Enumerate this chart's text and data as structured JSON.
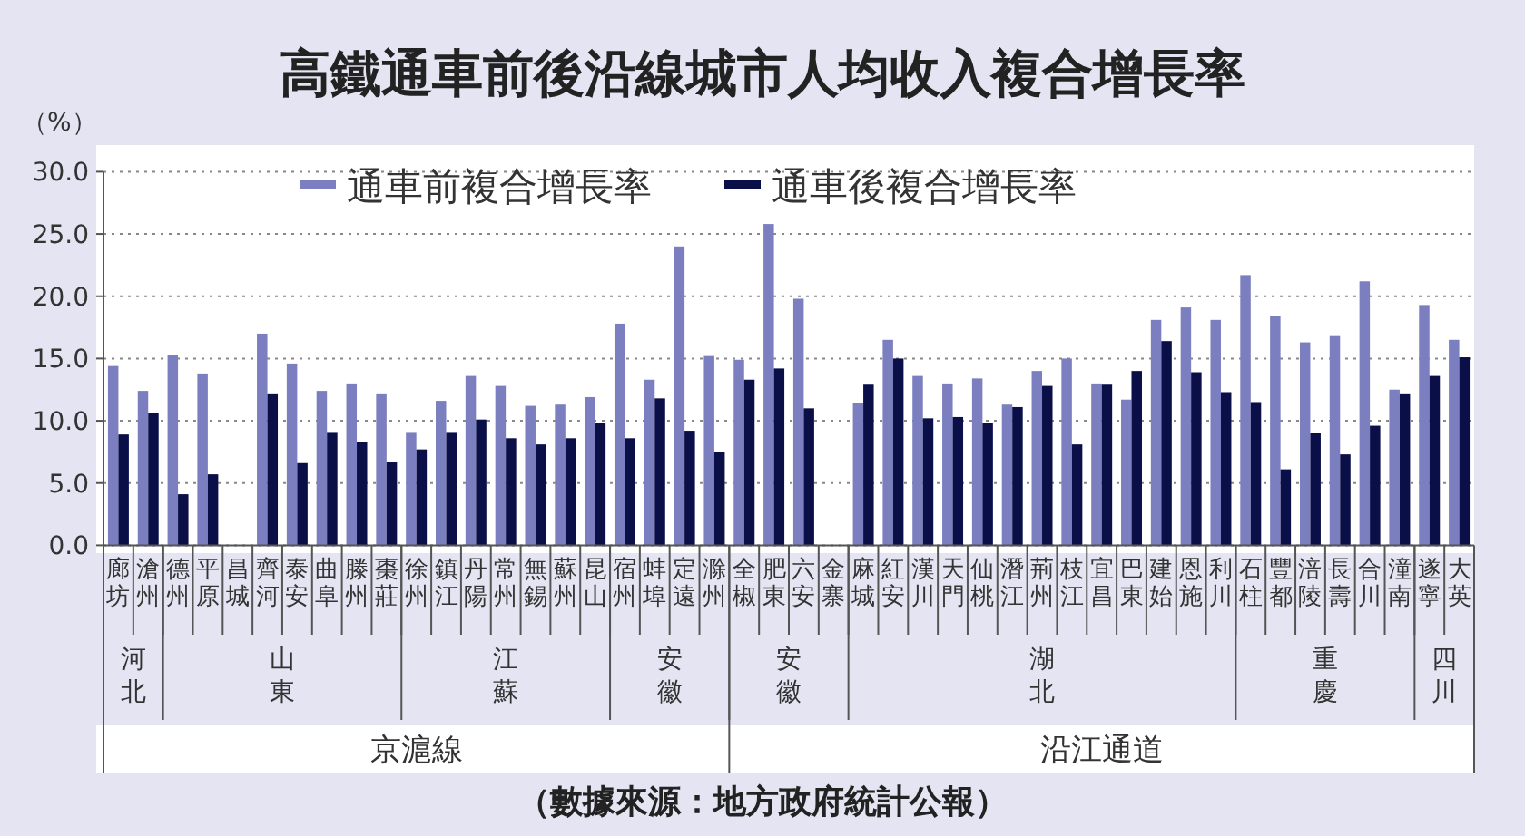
{
  "chart_data": {
    "type": "bar",
    "title": "高鐵通車前後沿線城市人均收入複合增長率",
    "ylabel": "（%）",
    "categories": [
      "廊坊",
      "滄州",
      "德州",
      "平原",
      "昌城",
      "齊河",
      "泰安",
      "曲阜",
      "滕州",
      "棗莊",
      "徐州",
      "鎮江",
      "丹陽",
      "常州",
      "無錫",
      "蘇州",
      "昆山",
      "宿州",
      "蚌埠",
      "定遠",
      "滁州",
      "全椒",
      "肥東",
      "六安",
      "金寨",
      "麻城",
      "紅安",
      "漢川",
      "天門",
      "仙桃",
      "潛江",
      "荊州",
      "枝江",
      "宜昌",
      "巴東",
      "建始",
      "恩施",
      "利川",
      "石柱",
      "豐都",
      "涪陵",
      "長壽",
      "合川",
      "潼南",
      "遂寧",
      "大英"
    ],
    "series": [
      {
        "name": "通車前複合增長率",
        "color": "#7b7fbf",
        "values": [
          14.4,
          12.4,
          15.3,
          13.8,
          null,
          17.0,
          14.6,
          12.4,
          13.0,
          12.2,
          9.1,
          11.6,
          13.6,
          12.8,
          11.2,
          11.3,
          11.9,
          17.8,
          13.3,
          24.0,
          15.2,
          14.9,
          25.8,
          19.8,
          null,
          11.4,
          16.5,
          13.6,
          13.0,
          13.4,
          11.3,
          14.0,
          15.0,
          13.0,
          11.7,
          18.1,
          19.1,
          18.1,
          21.7,
          18.4,
          16.3,
          16.8,
          21.2,
          12.5,
          19.3,
          16.5
        ]
      },
      {
        "name": "通車後複合增長率",
        "color": "#0a0f48",
        "values": [
          8.9,
          10.6,
          4.1,
          5.7,
          null,
          12.2,
          6.6,
          9.1,
          8.3,
          6.7,
          7.7,
          9.1,
          10.1,
          8.6,
          8.1,
          8.6,
          9.8,
          8.6,
          11.8,
          9.2,
          7.5,
          13.3,
          14.2,
          11.0,
          null,
          12.9,
          15.0,
          10.2,
          10.3,
          9.8,
          11.1,
          12.8,
          8.1,
          12.9,
          14.0,
          16.4,
          13.9,
          12.3,
          11.5,
          6.1,
          9.0,
          7.3,
          9.6,
          12.2,
          13.6,
          15.1
        ]
      }
    ],
    "ylim": [
      0,
      30
    ],
    "yticks": [
      {
        "value": 0,
        "label": "0.0"
      },
      {
        "value": 5,
        "label": "5.0"
      },
      {
        "value": 10,
        "label": "10.0"
      },
      {
        "value": 15,
        "label": "15.0"
      },
      {
        "value": 20,
        "label": "20.0"
      },
      {
        "value": 25,
        "label": "25.0"
      },
      {
        "value": 30,
        "label": "30.0"
      }
    ],
    "grid": "y",
    "legend": "top",
    "annotations": [
      "河北",
      "山東",
      "江蘇",
      "安徽",
      "安徽",
      "湖北",
      "重慶",
      "四川",
      "京滬線",
      "沿江通道",
      "（數據來源：地方政府統計公報）"
    ]
  }
}
